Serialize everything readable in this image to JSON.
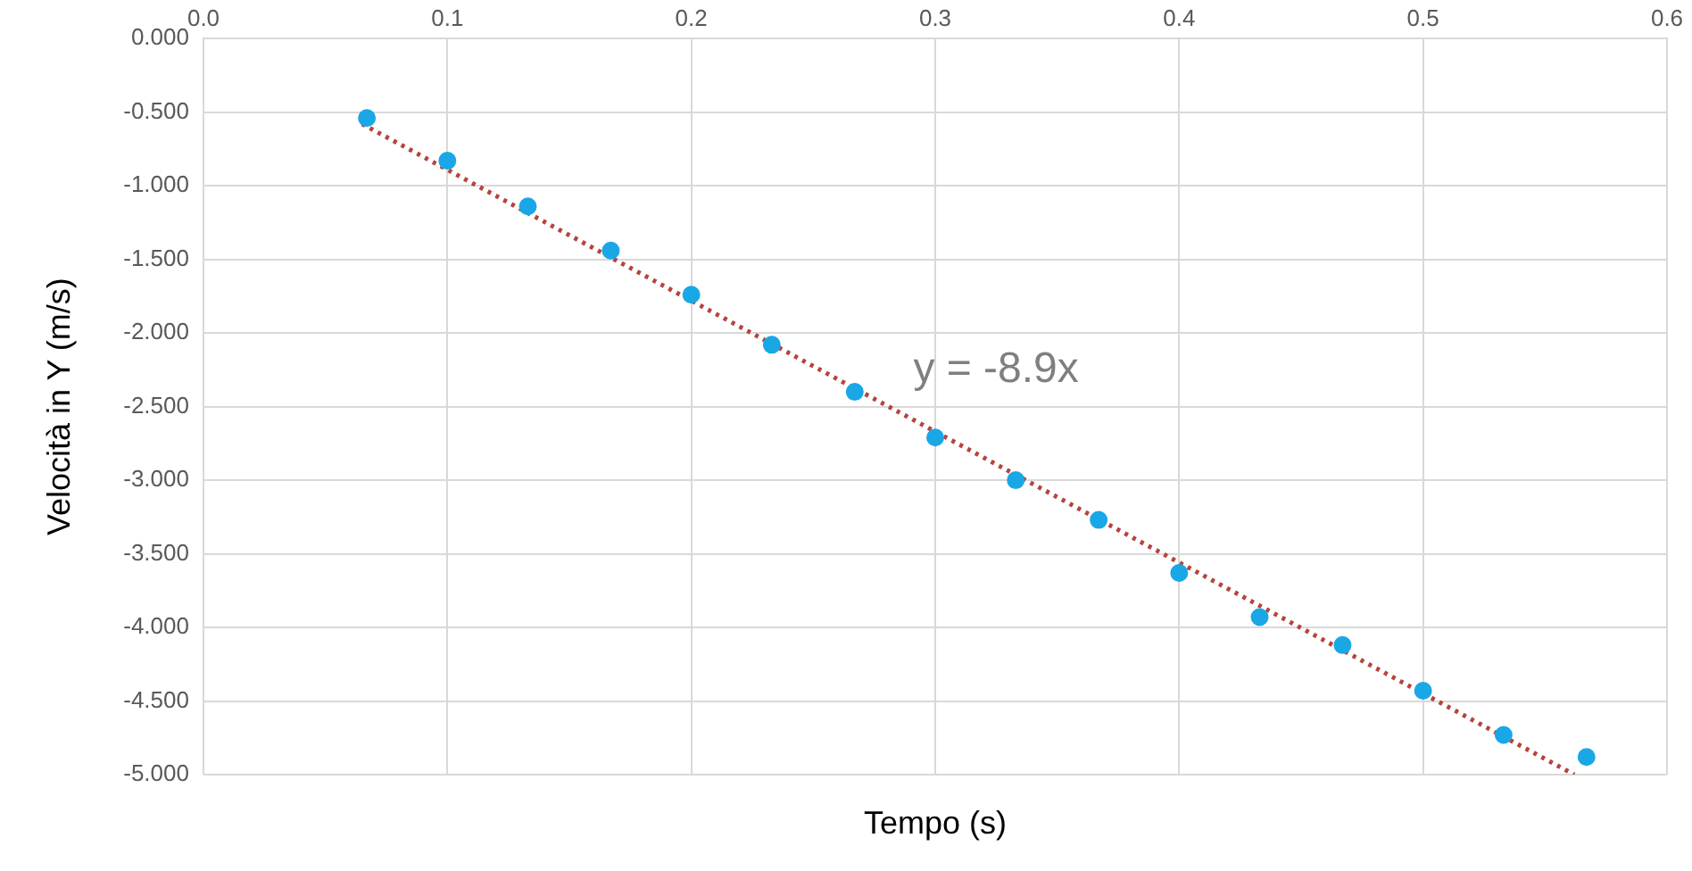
{
  "chart_data": {
    "type": "scatter",
    "xlabel": "Tempo (s)",
    "ylabel": "Velocità in Y (m/s)",
    "xlim": [
      0,
      0.6
    ],
    "xticks": [
      {
        "value": 0,
        "label": "0.0"
      },
      0.1,
      0.2,
      0.3,
      0.4,
      0.5,
      0.6
    ],
    "ylim": [
      -5,
      0
    ],
    "yticks": [
      {
        "value": 0,
        "label": "0.000"
      },
      {
        "value": -0.5,
        "label": "-0.500"
      },
      {
        "value": -1,
        "label": "-1.000"
      },
      {
        "value": -1.5,
        "label": "-1.500"
      },
      {
        "value": -2,
        "label": "-2.000"
      },
      {
        "value": -2.5,
        "label": "-2.500"
      },
      {
        "value": -3,
        "label": "-3.000"
      },
      {
        "value": -3.5,
        "label": "-3.500"
      },
      {
        "value": -4,
        "label": "-4.000"
      },
      {
        "value": -4.5,
        "label": "-4.500"
      },
      {
        "value": -5,
        "label": "-5.000"
      }
    ],
    "grid": true,
    "legend": false,
    "annotations": [
      "y = -8.9x"
    ],
    "series": [
      {
        "marker": "circle",
        "color": "#1aa7e6",
        "x": [
          0.067,
          0.1,
          0.133,
          0.167,
          0.2,
          0.233,
          0.267,
          0.3,
          0.333,
          0.367,
          0.4,
          0.433,
          0.467,
          0.5,
          0.533,
          0.567
        ],
        "values": [
          -0.54,
          -0.83,
          -1.14,
          -1.44,
          -1.74,
          -2.08,
          -2.4,
          -2.71,
          -3.0,
          -3.27,
          -3.63,
          -3.93,
          -4.12,
          -4.43,
          -4.73,
          -4.88
        ]
      },
      {
        "type": "line",
        "marker": "none",
        "color": "#b5443c",
        "line_style": "dotted",
        "x": [
          0.065,
          0.562
        ],
        "values": [
          -0.58,
          -5.0
        ]
      }
    ]
  }
}
